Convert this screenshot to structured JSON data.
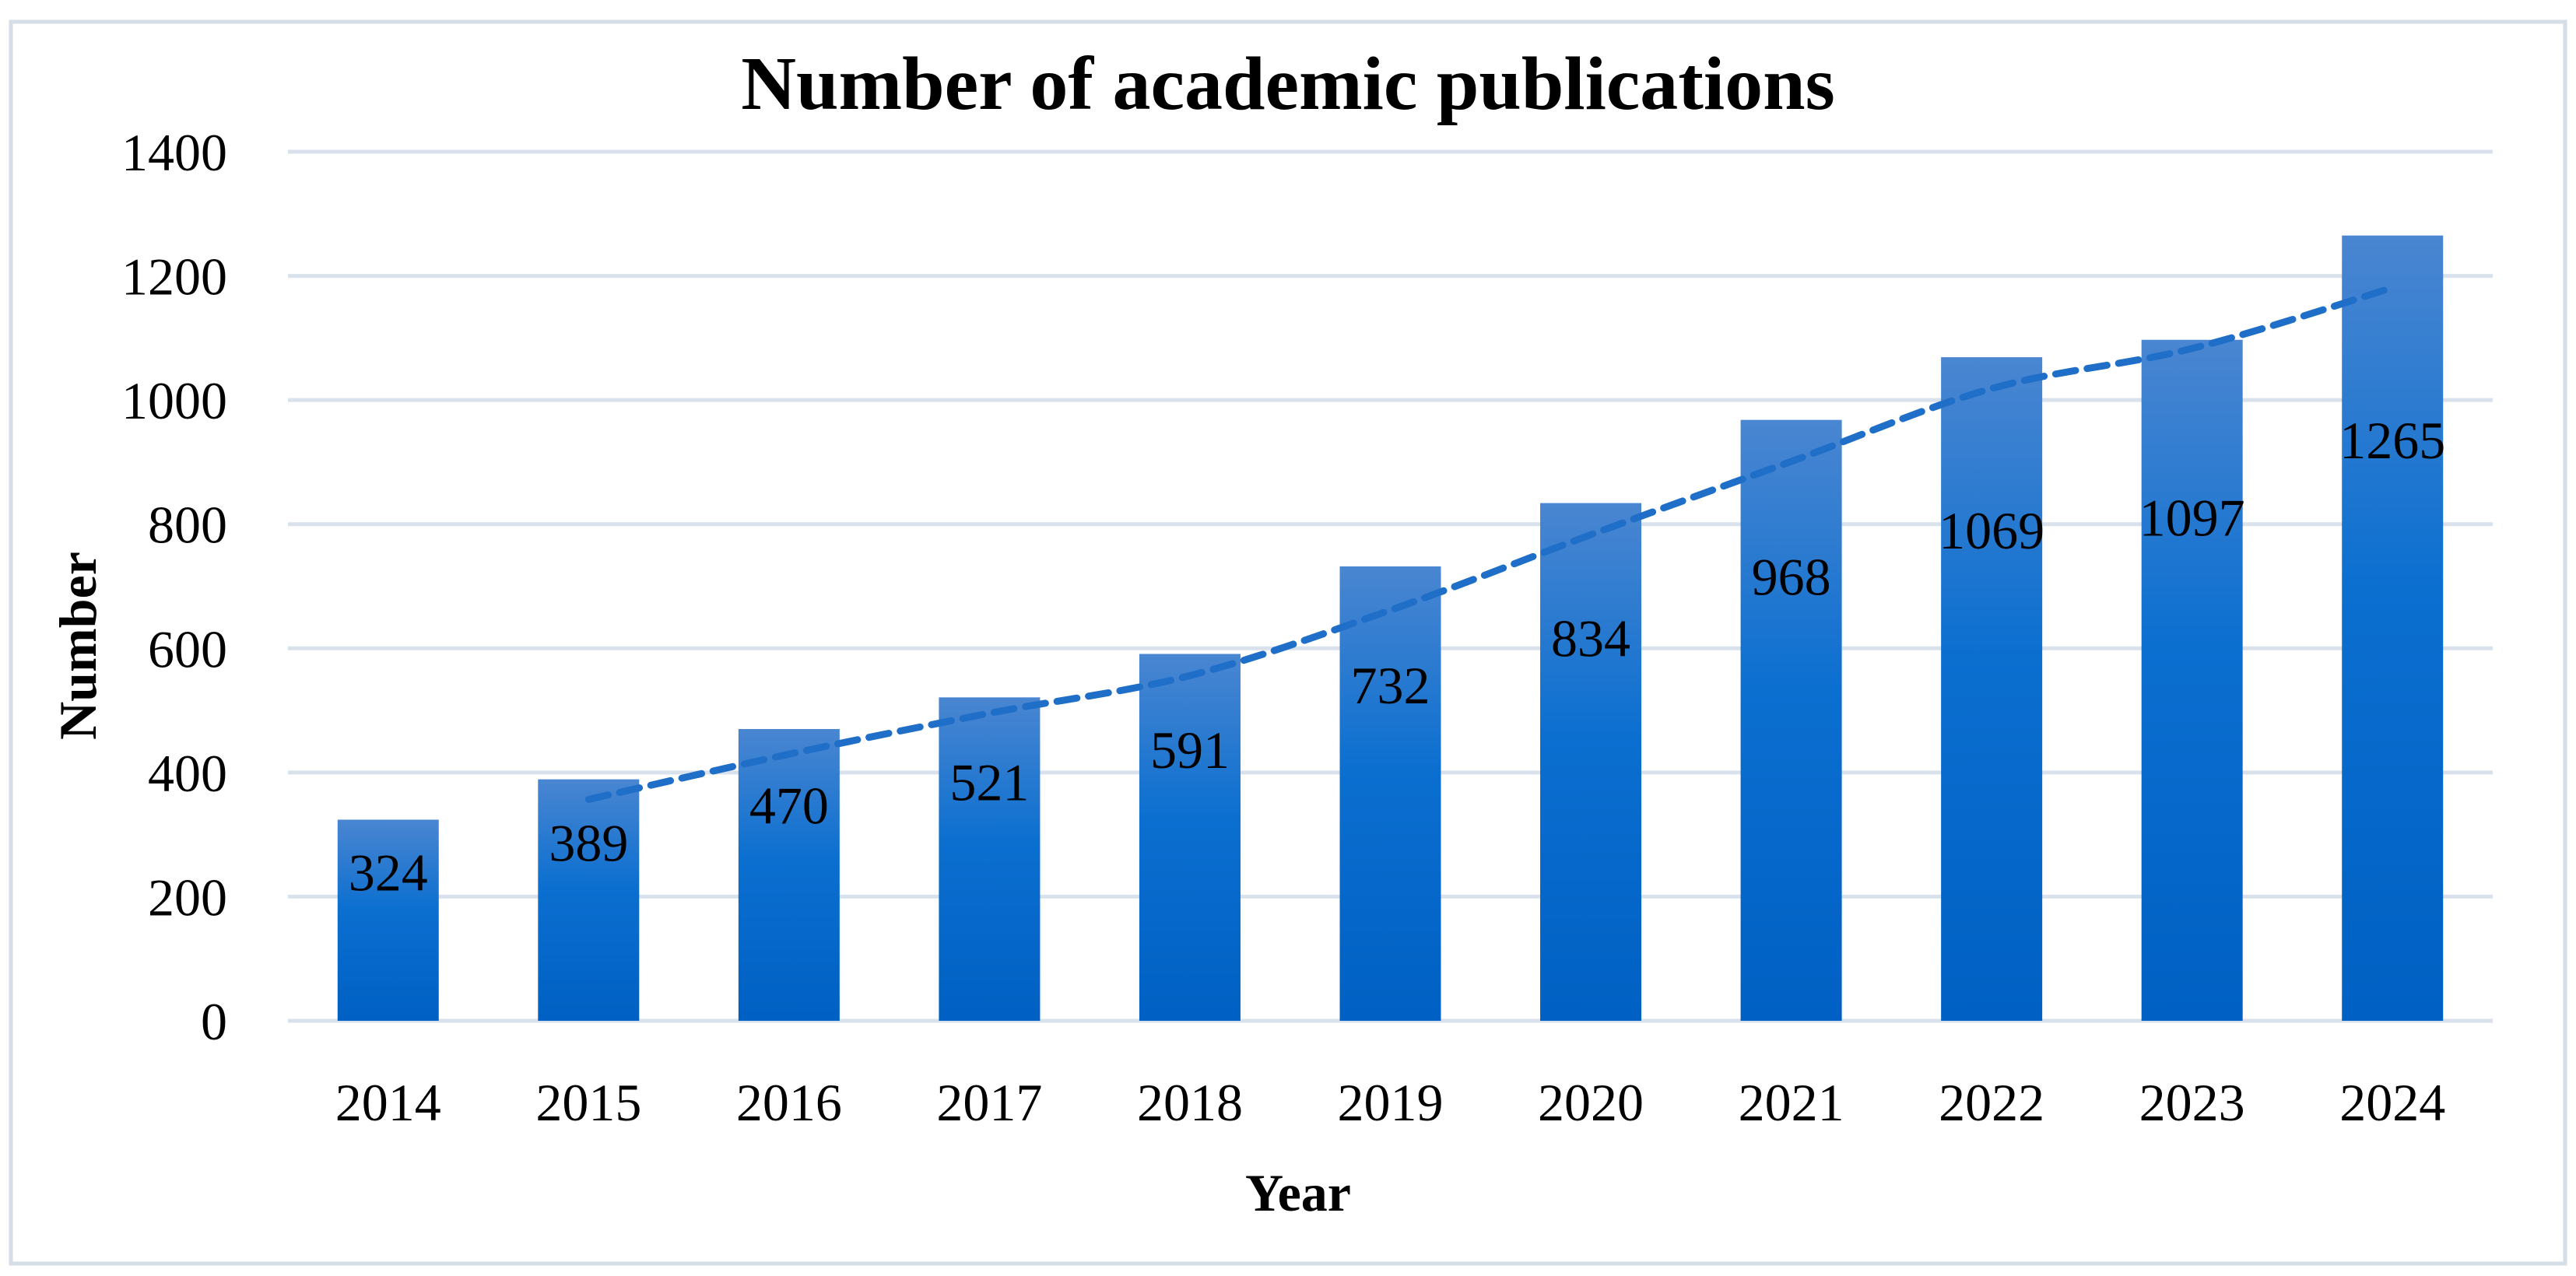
{
  "chart_data": {
    "type": "bar",
    "title": "Number of academic publications",
    "xlabel": "Year",
    "ylabel": "Number",
    "categories": [
      "2014",
      "2015",
      "2016",
      "2017",
      "2018",
      "2019",
      "2020",
      "2021",
      "2022",
      "2023",
      "2024"
    ],
    "series": [
      {
        "name": "Number",
        "values": [
          324,
          389,
          470,
          521,
          591,
          732,
          834,
          968,
          1069,
          1097,
          1265
        ]
      }
    ],
    "trendline": {
      "type": "moving-average",
      "period": 2,
      "style": "dashed"
    },
    "ylim": [
      0,
      1400
    ],
    "yticks": [
      0,
      200,
      400,
      600,
      800,
      1000,
      1200,
      1400
    ],
    "grid": true,
    "data_labels": true,
    "colors": {
      "bar_top": "#4a86d1",
      "bar_bottom": "#0060c3",
      "trendline": "#1f6fc8",
      "gridline": "#d9e2ec",
      "border": "#d5dde6"
    }
  }
}
